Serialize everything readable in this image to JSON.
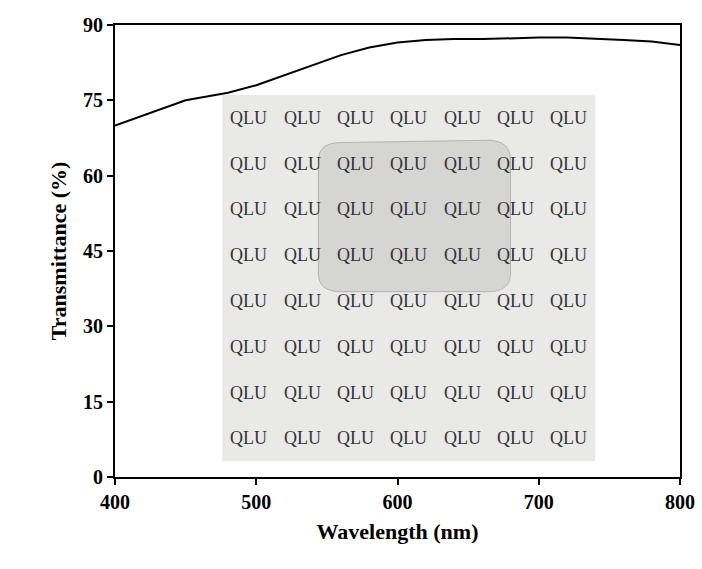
{
  "chart_data": {
    "type": "line",
    "x_label": "Wavelength (nm)",
    "y_label": "Transmittance (%)",
    "x": [
      400,
      420,
      440,
      450,
      460,
      480,
      500,
      520,
      540,
      560,
      580,
      600,
      620,
      640,
      660,
      680,
      700,
      720,
      740,
      760,
      780,
      800
    ],
    "values": [
      70,
      72,
      74,
      75,
      75.5,
      76.5,
      78,
      80,
      82,
      84,
      85.5,
      86.5,
      87,
      87.2,
      87.2,
      87.4,
      87.5,
      87.5,
      87.3,
      87,
      86.7,
      86
    ],
    "color": "#000000",
    "xlim": [
      400,
      800
    ],
    "ylim": [
      0,
      90
    ],
    "xticks": [
      400,
      500,
      600,
      700,
      800
    ],
    "yticks": [
      0,
      15,
      30,
      45,
      60,
      75,
      90
    ],
    "grid": false,
    "annotations": [
      {
        "text": "QLU",
        "rows": 8,
        "columns": 7
      }
    ]
  }
}
